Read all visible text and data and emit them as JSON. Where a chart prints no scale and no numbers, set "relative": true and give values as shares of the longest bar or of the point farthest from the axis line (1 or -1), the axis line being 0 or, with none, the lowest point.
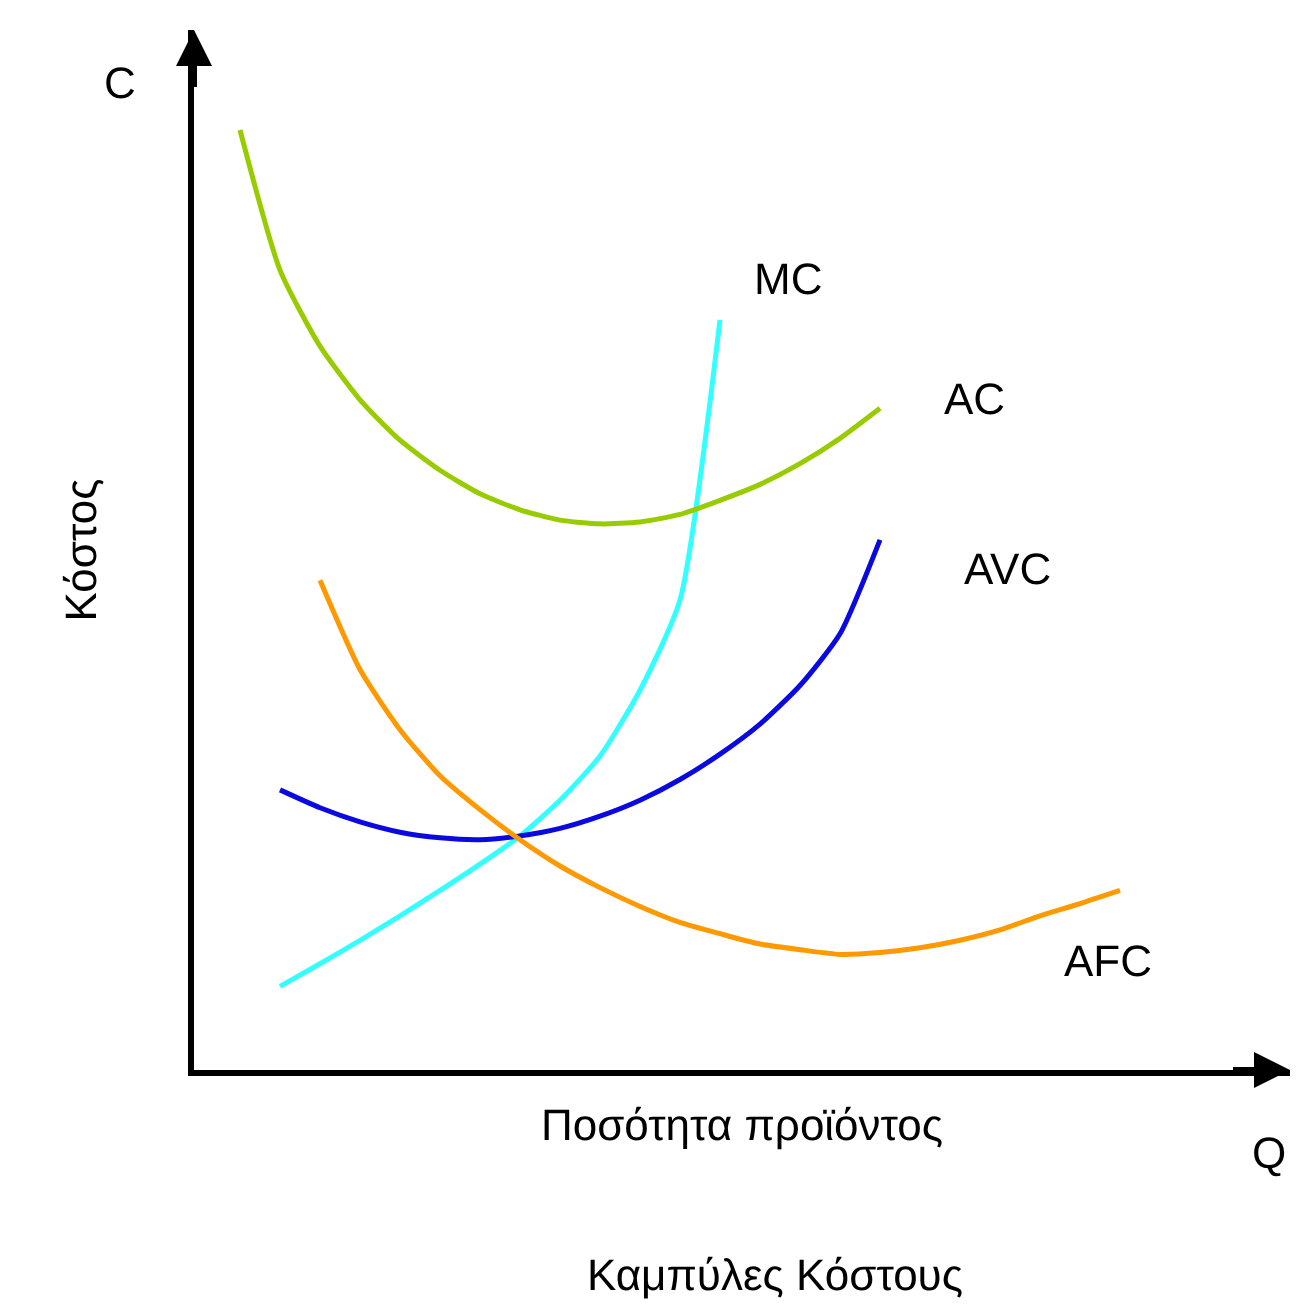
{
  "chart_data": {
    "type": "line",
    "title": "Καμπύλες Κόστους",
    "xlabel": "Ποσότητα προϊόντος",
    "ylabel": "Κόστος",
    "annotations": [
      "C",
      "Q"
    ],
    "relative": true,
    "legend": false,
    "tick_labels": false,
    "marker": "none",
    "line_style": "solid",
    "categories": [
      null,
      null,
      null,
      null,
      null,
      null,
      null,
      null,
      null,
      null,
      null,
      null,
      null,
      null,
      null,
      null,
      null,
      null,
      null,
      null,
      null,
      null,
      null
    ],
    "series": [
      {
        "name": "MC",
        "color": "#33ffff",
        "values": [
          null,
          0.089,
          0.113,
          0.138,
          0.164,
          0.191,
          0.219,
          0.249,
          0.287,
          0.334,
          0.404,
          0.5,
          0.798,
          null,
          null,
          null,
          null,
          null,
          null,
          null,
          null,
          null,
          null
        ]
      },
      {
        "name": "AC",
        "color": "#99cc00",
        "values": [
          1.0,
          0.851,
          0.77,
          0.713,
          0.67,
          0.638,
          0.613,
          0.596,
          0.585,
          0.581,
          0.583,
          0.591,
          0.606,
          0.623,
          0.645,
          0.672,
          0.704,
          null,
          null,
          null,
          null,
          null,
          null
        ]
      },
      {
        "name": "AVC",
        "color": "#0a0ae0",
        "values": [
          null,
          0.298,
          0.279,
          0.264,
          0.253,
          0.247,
          0.245,
          0.249,
          0.257,
          0.27,
          0.287,
          0.309,
          0.336,
          0.368,
          0.409,
          0.464,
          0.564,
          null,
          null,
          null,
          null,
          null,
          null
        ]
      },
      {
        "name": "AFC",
        "color": "#ff9900",
        "values": [
          null,
          null,
          0.521,
          0.426,
          0.362,
          0.313,
          0.277,
          0.245,
          0.217,
          0.194,
          0.174,
          0.157,
          0.145,
          0.134,
          0.128,
          0.123,
          0.125,
          0.13,
          0.138,
          0.149,
          0.164,
          0.177,
          0.191
        ]
      }
    ]
  }
}
